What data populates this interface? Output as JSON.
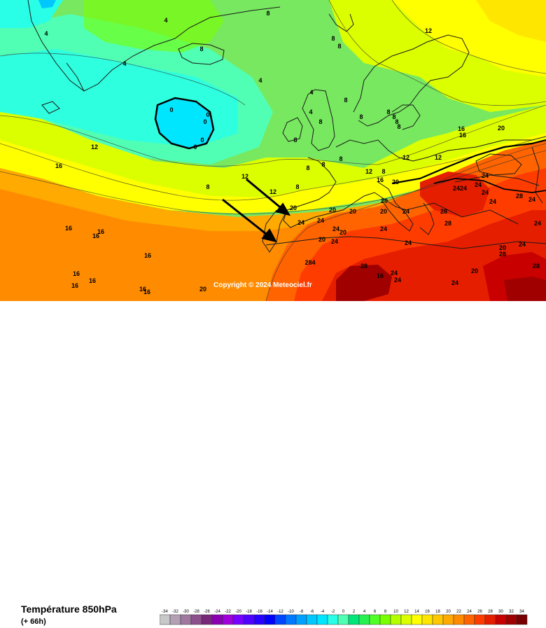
{
  "title": "Température 850hPa",
  "subtitle": "(+ 66h)",
  "copyright": "Copyright © 2024 Meteociel.fr",
  "legend": {
    "labels": [
      "-34",
      "-32",
      "-30",
      "-28",
      "-26",
      "-24",
      "-22",
      "-20",
      "-18",
      "-16",
      "-14",
      "-12",
      "-10",
      "-8",
      "-6",
      "-4",
      "-2",
      "0",
      "2",
      "4",
      "6",
      "8",
      "10",
      "12",
      "14",
      "16",
      "18",
      "20",
      "22",
      "24",
      "26",
      "28",
      "30",
      "32",
      "34"
    ],
    "colors": [
      "#c8c8c8",
      "#b4a0b4",
      "#a078a0",
      "#8c508c",
      "#782878",
      "#8c00b4",
      "#a000dc",
      "#7800ff",
      "#5000ff",
      "#2800ff",
      "#0000ff",
      "#0046ff",
      "#0078ff",
      "#00a0ff",
      "#00c8ff",
      "#00e6ff",
      "#28ffe6",
      "#50ffb4",
      "#00e678",
      "#28f050",
      "#50ff28",
      "#78ff00",
      "#b4ff00",
      "#dcff00",
      "#ffff00",
      "#ffe600",
      "#ffc800",
      "#ffaa00",
      "#ff8c00",
      "#ff6400",
      "#ff3c00",
      "#e61e00",
      "#c80000",
      "#a00000",
      "#780000"
    ]
  },
  "isotherm_labels": [
    "4",
    "4",
    "4",
    "4",
    "8",
    "8",
    "8",
    "8",
    "4",
    "4",
    "8",
    "8",
    "8",
    "8",
    "12",
    "0",
    "0",
    "0",
    "0",
    "0",
    "8",
    "8",
    "8",
    "8",
    "8",
    "8",
    "8",
    "8",
    "12",
    "16",
    "12",
    "8",
    "8",
    "12",
    "16",
    "12",
    "20",
    "12",
    "16",
    "20",
    "16",
    "12",
    "20",
    "20",
    "20",
    "20",
    "24",
    "24",
    "24",
    "2424",
    "24",
    "24",
    "20",
    "20",
    "20",
    "24",
    "24",
    "24",
    "28",
    "28",
    "28",
    "20",
    "20",
    "24",
    "24",
    "24",
    "24",
    "28",
    "28",
    "24",
    "284",
    "28",
    "24",
    "16",
    "16",
    "16",
    "16",
    "16",
    "16",
    "16",
    "16",
    "16",
    "16",
    "20",
    "24",
    "24",
    "24"
  ],
  "arrows": 2
}
